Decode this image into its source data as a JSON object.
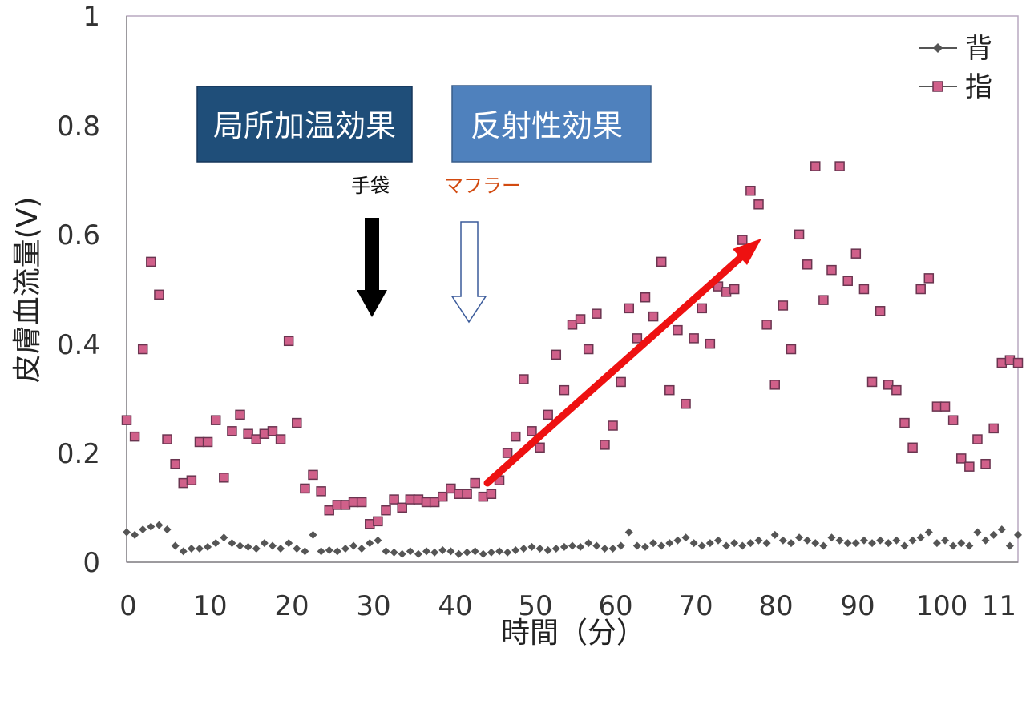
{
  "chart_data": {
    "type": "scatter",
    "title": "",
    "xlabel": "時間（分）",
    "ylabel": "皮膚血流量(V)",
    "xlim": [
      0,
      110
    ],
    "ylim": [
      0,
      1
    ],
    "x_ticks": [
      "0",
      "10",
      "20",
      "30",
      "40",
      "50",
      "60",
      "70",
      "80",
      "90",
      "100",
      "11"
    ],
    "y_ticks": [
      "0",
      "0.2",
      "0.4",
      "0.6",
      "0.8",
      "1"
    ],
    "grid": false,
    "legend_position": "top-right",
    "series": [
      {
        "name": "背",
        "color": "#555555",
        "marker": "diamond",
        "x": [
          0,
          1,
          2,
          3,
          4,
          5,
          6,
          7,
          8,
          9,
          10,
          11,
          12,
          13,
          14,
          15,
          16,
          17,
          18,
          19,
          20,
          21,
          22,
          23,
          24,
          25,
          26,
          27,
          28,
          29,
          30,
          31,
          32,
          33,
          34,
          35,
          36,
          37,
          38,
          39,
          40,
          41,
          42,
          43,
          44,
          45,
          46,
          47,
          48,
          49,
          50,
          51,
          52,
          53,
          54,
          55,
          56,
          57,
          58,
          59,
          60,
          61,
          62,
          63,
          64,
          65,
          66,
          67,
          68,
          69,
          70,
          71,
          72,
          73,
          74,
          75,
          76,
          77,
          78,
          79,
          80,
          81,
          82,
          83,
          84,
          85,
          86,
          87,
          88,
          89,
          90,
          91,
          92,
          93,
          94,
          95,
          96,
          97,
          98,
          99,
          100,
          101,
          102,
          103,
          104,
          105,
          106,
          107,
          108,
          109,
          110
        ],
        "y": [
          0.055,
          0.05,
          0.06,
          0.065,
          0.068,
          0.06,
          0.03,
          0.02,
          0.025,
          0.025,
          0.028,
          0.035,
          0.045,
          0.035,
          0.03,
          0.028,
          0.025,
          0.035,
          0.03,
          0.025,
          0.035,
          0.025,
          0.02,
          0.05,
          0.02,
          0.022,
          0.02,
          0.025,
          0.03,
          0.025,
          0.035,
          0.04,
          0.02,
          0.018,
          0.015,
          0.02,
          0.015,
          0.02,
          0.018,
          0.022,
          0.02,
          0.015,
          0.018,
          0.02,
          0.015,
          0.018,
          0.02,
          0.018,
          0.022,
          0.025,
          0.028,
          0.025,
          0.022,
          0.025,
          0.028,
          0.03,
          0.028,
          0.035,
          0.03,
          0.025,
          0.025,
          0.03,
          0.055,
          0.03,
          0.028,
          0.035,
          0.03,
          0.035,
          0.04,
          0.045,
          0.035,
          0.03,
          0.035,
          0.04,
          0.03,
          0.035,
          0.03,
          0.035,
          0.04,
          0.035,
          0.05,
          0.04,
          0.035,
          0.045,
          0.04,
          0.035,
          0.03,
          0.045,
          0.04,
          0.035,
          0.035,
          0.04,
          0.035,
          0.04,
          0.035,
          0.04,
          0.03,
          0.04,
          0.045,
          0.055,
          0.035,
          0.04,
          0.03,
          0.035,
          0.03,
          0.055,
          0.04,
          0.05,
          0.06,
          0.03,
          0.05
        ]
      },
      {
        "name": "指",
        "color": "#d0608a",
        "marker": "square",
        "x": [
          0,
          1,
          2,
          3,
          4,
          5,
          6,
          7,
          8,
          9,
          10,
          11,
          12,
          13,
          14,
          15,
          16,
          17,
          18,
          19,
          20,
          21,
          22,
          23,
          24,
          25,
          26,
          27,
          28,
          29,
          30,
          31,
          32,
          33,
          34,
          35,
          36,
          37,
          38,
          39,
          40,
          41,
          42,
          43,
          44,
          45,
          46,
          47,
          48,
          49,
          50,
          51,
          52,
          53,
          54,
          55,
          56,
          57,
          58,
          59,
          60,
          61,
          62,
          63,
          64,
          65,
          66,
          67,
          68,
          69,
          70,
          71,
          72,
          73,
          74,
          75,
          76,
          77,
          78,
          79,
          80,
          81,
          82,
          83,
          84,
          85,
          86,
          87,
          88,
          89,
          90,
          91,
          92,
          93,
          94,
          95,
          96,
          97,
          98,
          99,
          100,
          101,
          102,
          103,
          104,
          105,
          106,
          107,
          108,
          109,
          110
        ],
        "y": [
          0.26,
          0.23,
          0.39,
          0.55,
          0.49,
          0.225,
          0.18,
          0.145,
          0.15,
          0.22,
          0.22,
          0.26,
          0.155,
          0.24,
          0.27,
          0.235,
          0.225,
          0.235,
          0.24,
          0.225,
          0.405,
          0.255,
          0.135,
          0.16,
          0.13,
          0.095,
          0.105,
          0.105,
          0.11,
          0.11,
          0.07,
          0.075,
          0.095,
          0.115,
          0.1,
          0.115,
          0.115,
          0.11,
          0.11,
          0.12,
          0.135,
          0.125,
          0.125,
          0.145,
          0.12,
          0.125,
          0.15,
          0.2,
          0.23,
          0.335,
          0.24,
          0.21,
          0.27,
          0.38,
          0.315,
          0.435,
          0.445,
          0.39,
          0.455,
          0.215,
          0.25,
          0.33,
          0.465,
          0.41,
          0.485,
          0.45,
          0.55,
          0.315,
          0.425,
          0.29,
          0.41,
          0.465,
          0.4,
          0.505,
          0.495,
          0.5,
          0.59,
          0.68,
          0.655,
          0.435,
          0.325,
          0.47,
          0.39,
          0.6,
          0.545,
          0.725,
          0.48,
          0.535,
          0.725,
          0.515,
          0.565,
          0.5,
          0.33,
          0.46,
          0.325,
          0.315,
          0.255,
          0.21,
          0.5,
          0.52,
          0.285,
          0.285,
          0.26,
          0.19,
          0.175,
          0.225,
          0.18,
          0.245,
          0.365,
          0.37,
          0.365
        ]
      }
    ],
    "annotations": {
      "box_local": "局所加温効果",
      "box_reflex": "反射性効果",
      "label_gloves": "手袋",
      "label_muffler": "マフラー"
    }
  }
}
